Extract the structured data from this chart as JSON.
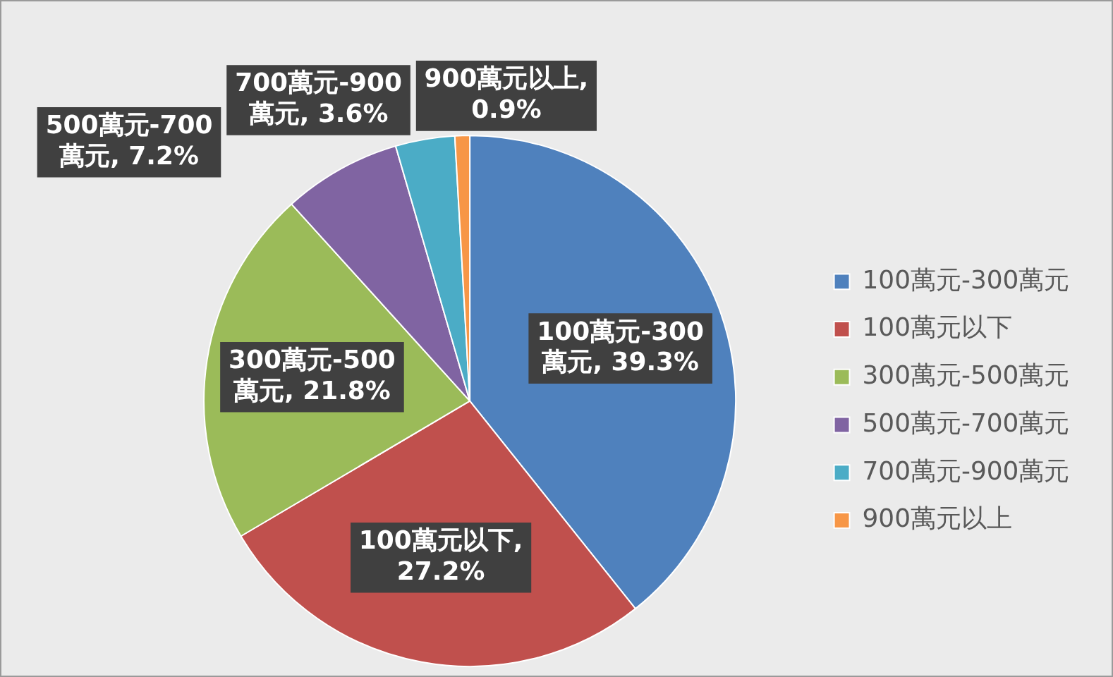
{
  "chart_data": {
    "type": "pie",
    "categories": [
      "100萬元-300萬元",
      "100萬元以下",
      "300萬元-500萬元",
      "500萬元-700萬元",
      "700萬元-900萬元",
      "900萬元以上"
    ],
    "values": [
      39.3,
      27.2,
      21.8,
      7.2,
      3.6,
      0.9
    ],
    "colors": [
      "#4f81bd",
      "#c0504d",
      "#9bbb59",
      "#8064a2",
      "#4bacc6",
      "#f79646"
    ],
    "value_labels": [
      "100萬元-300\n萬元, 39.3%",
      "100萬元以下,\n27.2%",
      "300萬元-500\n萬元, 21.8%",
      "500萬元-700\n萬元, 7.2%",
      "700萬元-900\n萬元, 3.6%",
      "900萬元以上,\n0.9%"
    ],
    "legend": "right"
  }
}
